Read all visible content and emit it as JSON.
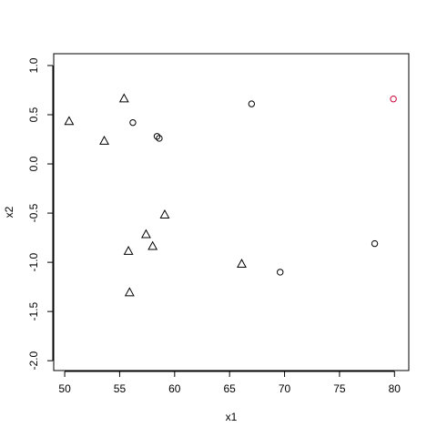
{
  "chart_data": {
    "type": "scatter",
    "xlabel": "x1",
    "ylabel": "x2",
    "xlim": [
      49,
      81.3
    ],
    "ylim": [
      -2.1,
      1.12
    ],
    "grid": false,
    "x_ticks": [
      50,
      55,
      60,
      65,
      70,
      75,
      80
    ],
    "y_ticks": [
      1.0,
      0.5,
      0.0,
      -0.5,
      -1.0,
      -1.5,
      -2.0
    ],
    "x_tick_labels": [
      "50",
      "55",
      "60",
      "65",
      "70",
      "75",
      "80"
    ],
    "y_tick_labels": [
      "1.0",
      "0.5",
      "0.0",
      "-0.5",
      "-1.0",
      "-1.5",
      "-2.0"
    ],
    "series": [
      {
        "marker": "triangle",
        "color": "#000000",
        "points": [
          {
            "x": 50.4,
            "y": 0.43
          },
          {
            "x": 53.6,
            "y": 0.23
          },
          {
            "x": 55.4,
            "y": 0.66
          },
          {
            "x": 59.1,
            "y": -0.52
          },
          {
            "x": 57.4,
            "y": -0.72
          },
          {
            "x": 55.8,
            "y": -0.89
          },
          {
            "x": 58.0,
            "y": -0.84
          },
          {
            "x": 55.9,
            "y": -1.31
          },
          {
            "x": 66.1,
            "y": -1.02
          }
        ]
      },
      {
        "marker": "circle",
        "color": "#000000",
        "points": [
          {
            "x": 56.2,
            "y": 0.42
          },
          {
            "x": 58.4,
            "y": 0.28
          },
          {
            "x": 58.6,
            "y": 0.26
          },
          {
            "x": 67.0,
            "y": 0.61
          },
          {
            "x": 69.6,
            "y": -1.1
          },
          {
            "x": 78.2,
            "y": -0.81
          }
        ]
      },
      {
        "marker": "circle",
        "color": "#cc0033",
        "points": [
          {
            "x": 79.9,
            "y": 0.66
          }
        ]
      }
    ]
  }
}
